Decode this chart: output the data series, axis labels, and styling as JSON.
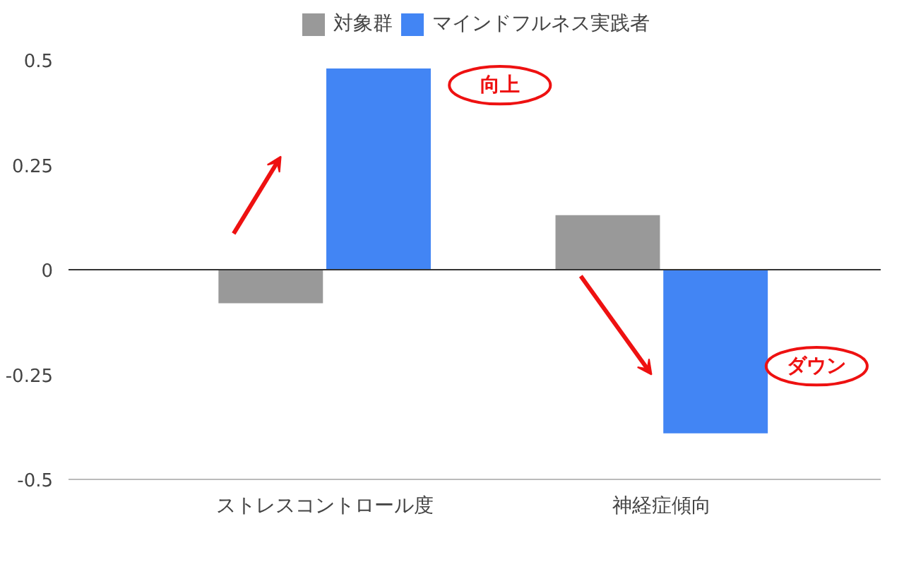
{
  "chart_data": {
    "type": "bar",
    "categories": [
      "ストレスコントロール度",
      "神経症傾向"
    ],
    "series": [
      {
        "name": "対象群",
        "color": "#999999",
        "values": [
          -0.08,
          0.13
        ]
      },
      {
        "name": "マインドフルネス実践者",
        "color": "#4285f4",
        "values": [
          0.48,
          -0.39
        ]
      }
    ],
    "ylim": [
      -0.5,
      0.5
    ],
    "yticks": [
      -0.5,
      -0.25,
      0,
      0.25,
      0.5
    ],
    "grid": false,
    "legend": "top",
    "ref_lines": [
      {
        "axis": "y",
        "value": 0,
        "color": "#333333"
      }
    ],
    "annotations": [
      "向上",
      "ダウン"
    ]
  }
}
